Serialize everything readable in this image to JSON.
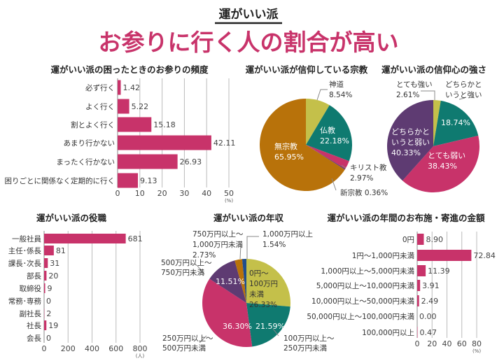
{
  "header": {
    "kicker": "運がいい派",
    "title": "お参りに行く人の割合が高い"
  },
  "colors": {
    "accent": "#c8336a",
    "teal": "#0f7a70",
    "olive": "#c4c04a",
    "amber": "#b8720a",
    "purple": "#5e3b72",
    "blue": "#1f4e8c",
    "grid": "#bbbbbb"
  },
  "chart_data": [
    {
      "type": "bar",
      "orientation": "horizontal",
      "title": "運がいい派の困ったときのお参りの頻度",
      "categories": [
        "必ず行く",
        "よく行く",
        "割とよく行く",
        "あまり行かない",
        "まったく行かない",
        "困りごとに関係なく定期的に行く"
      ],
      "values": [
        1.42,
        5.22,
        15.18,
        42.11,
        26.93,
        9.13
      ],
      "value_labels": [
        "1.42",
        "5.22",
        "15.18",
        "42.11",
        "26.93",
        "9.13"
      ],
      "xlim": [
        0,
        50
      ],
      "xticks": [
        "0",
        "10",
        "20",
        "30",
        "40",
        "50"
      ],
      "unit": "(%)",
      "grid": true,
      "color": "#c8336a"
    },
    {
      "type": "pie",
      "title": "運がいい派が信仰している宗教",
      "slices": [
        {
          "label_lines": [
            "神道"
          ],
          "value": 8.54,
          "value_label": "8.54%",
          "color": "#c4c04a"
        },
        {
          "label_lines": [
            "仏教"
          ],
          "value": 22.18,
          "value_label": "22.18%",
          "color": "#0f7a70"
        },
        {
          "label_lines": [
            "キリスト教"
          ],
          "value": 2.97,
          "value_label": "2.97%",
          "color": "#c8336a"
        },
        {
          "label_lines": [
            "新宗教"
          ],
          "value": 0.36,
          "value_label": "0.36%",
          "color": "#5e3b72"
        },
        {
          "label_lines": [
            "無宗教"
          ],
          "value": 65.95,
          "value_label": "65.95%",
          "color": "#b8720a"
        }
      ]
    },
    {
      "type": "pie",
      "title": "運がいい派の信仰心の強さ",
      "slices": [
        {
          "label_lines": [
            "とても強い"
          ],
          "value": 2.61,
          "value_label": "2.61%",
          "color": "#c4c04a"
        },
        {
          "label_lines": [
            "どちらかと",
            "いうと強い"
          ],
          "value": 18.74,
          "value_label": "18.74%",
          "color": "#0f7a70"
        },
        {
          "label_lines": [
            "どちらかと",
            "いうと弱い"
          ],
          "value": 40.33,
          "value_label": "40.33%",
          "color": "#c8336a"
        },
        {
          "label_lines": [
            "とても弱い"
          ],
          "value": 38.43,
          "value_label": "38.43%",
          "color": "#5e3b72"
        }
      ]
    },
    {
      "type": "bar",
      "orientation": "horizontal",
      "title": "運がいい派の役職",
      "categories": [
        "一般社員",
        "主任･係長",
        "課長･次長",
        "部長",
        "取締役",
        "常務･専務",
        "副社長",
        "社長",
        "会長"
      ],
      "values": [
        681,
        81,
        31,
        20,
        9,
        0,
        2,
        19,
        0
      ],
      "value_labels": [
        "681",
        "81",
        "31",
        "20",
        "9",
        "0",
        "2",
        "19",
        "0"
      ],
      "xlim": [
        0,
        800
      ],
      "xticks": [
        "0",
        "200",
        "400",
        "600",
        "800"
      ],
      "unit": "(人)",
      "grid": true,
      "color": "#c8336a"
    },
    {
      "type": "pie",
      "title": "運がいい派の年収",
      "slices": [
        {
          "label_lines": [
            "0円〜",
            "100万円",
            "未満"
          ],
          "value": 26.33,
          "value_label": "26.33%",
          "color": "#c4c04a"
        },
        {
          "label_lines": [
            "100万円以上〜",
            "250万円未満"
          ],
          "value": 21.59,
          "value_label": "21.59%",
          "color": "#0f7a70"
        },
        {
          "label_lines": [
            "250万円以上〜",
            "500万円未満"
          ],
          "value": 36.3,
          "value_label": "36.30%",
          "color": "#c8336a"
        },
        {
          "label_lines": [
            "500万円以上〜",
            "750万円未満"
          ],
          "value": 11.51,
          "value_label": "11.51%",
          "color": "#5e3b72"
        },
        {
          "label_lines": [
            "750万円以上〜",
            "1,000万円未満"
          ],
          "value": 2.73,
          "value_label": "2.73%",
          "color": "#b8720a"
        },
        {
          "label_lines": [
            "1,000万円以上"
          ],
          "value": 1.54,
          "value_label": "1.54%",
          "color": "#1f4e8c"
        }
      ]
    },
    {
      "type": "bar",
      "orientation": "horizontal",
      "title": "運がいい派の年間のお布施・寄進の金額",
      "categories": [
        "0円",
        "1円〜1,000円未満",
        "1,000円以上〜5,000円未満",
        "5,000円以上〜10,000円未満",
        "10,000円以上〜50,000円未満",
        "50,000円以上〜100,000円未満",
        "100,000円以上"
      ],
      "values": [
        8.9,
        72.84,
        11.39,
        3.91,
        2.49,
        0.0,
        0.47
      ],
      "value_labels": [
        "8.90",
        "72.84",
        "11.39",
        "3.91",
        "2.49",
        "0.00",
        "0.47"
      ],
      "xlim": [
        0,
        80
      ],
      "xticks": [
        "0",
        "20",
        "40",
        "60",
        "80"
      ],
      "unit": "(%)",
      "grid": true,
      "color": "#c8336a"
    }
  ]
}
